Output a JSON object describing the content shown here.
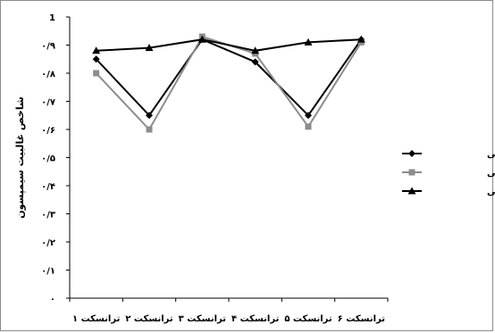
{
  "chart_data": {
    "type": "line",
    "title": "",
    "xlabel": "",
    "ylabel": "شاخص غالبیت سیمپسون",
    "categories": [
      "ترانسکت ۱",
      "ترانسکت ۲",
      "ترانسکت ۳",
      "ترانسکت ۴",
      "ترانسکت ۵",
      "ترانسکت ۶"
    ],
    "ylim": [
      0,
      1
    ],
    "yticks": [
      "۰",
      "۰/۱",
      "۰/۲",
      "۰/۳",
      "۰/۴",
      "۰/۵",
      "۰/۶",
      "۰/۷",
      "۰/۸",
      "۰/۹",
      "1"
    ],
    "grid": false,
    "legend_position": "right",
    "series": [
      {
        "name": "ناحیه فراساحلی",
        "values": [
          0.85,
          0.65,
          0.92,
          0.84,
          0.65,
          0.92
        ],
        "color": "#000000",
        "marker": "diamond"
      },
      {
        "name": "ناحیه میان ساحلی",
        "values": [
          0.8,
          0.6,
          0.93,
          0.87,
          0.61,
          0.91
        ],
        "color": "#8c8c8c",
        "marker": "square"
      },
      {
        "name": "ناحیه فروساحلی",
        "values": [
          0.88,
          0.89,
          0.92,
          0.88,
          0.91,
          0.92
        ],
        "color": "#000000",
        "marker": "triangle"
      }
    ]
  }
}
